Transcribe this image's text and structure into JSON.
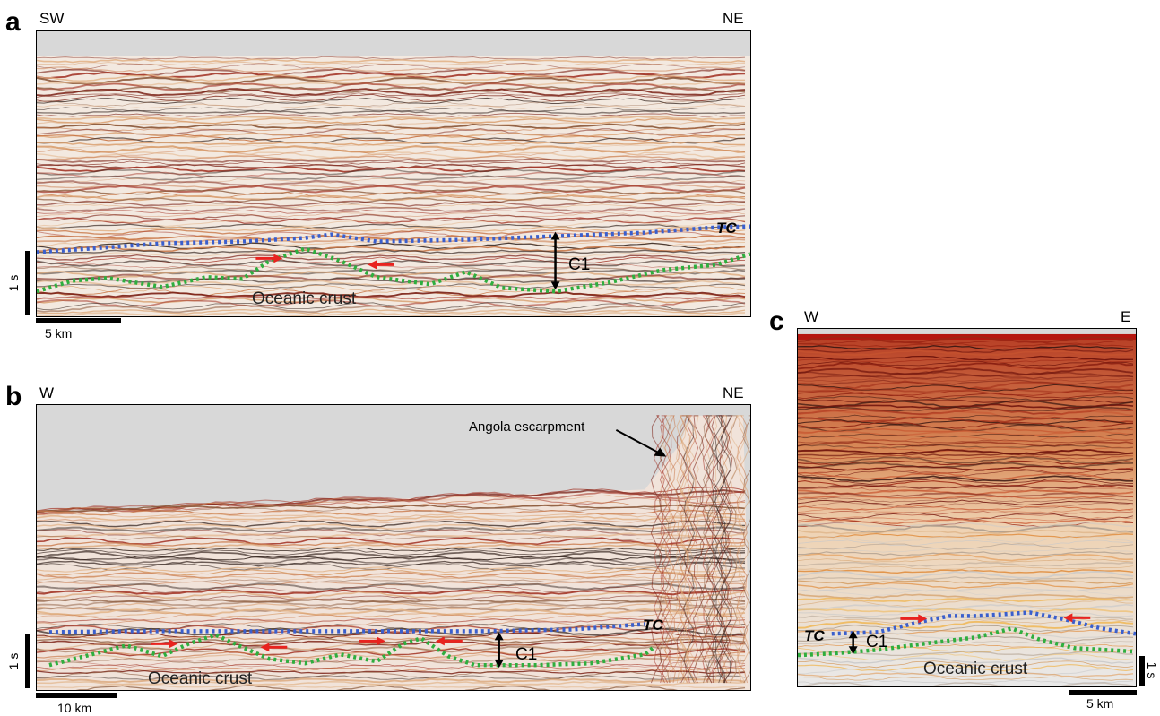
{
  "panels": {
    "a": {
      "letter": "a",
      "left_dir": "SW",
      "right_dir": "NE",
      "tc_label": "TC",
      "c1_label": "C1",
      "crust_label": "Oceanic crust",
      "time_scale": "1 s",
      "dist_scale": "5 km"
    },
    "b": {
      "letter": "b",
      "left_dir": "W",
      "right_dir": "NE",
      "tc_label": "TC",
      "c1_label": "C1",
      "crust_label": "Oceanic crust",
      "escarpment_label": "Angola escarpment",
      "time_scale": "1 s",
      "dist_scale": "10 km"
    },
    "c": {
      "letter": "c",
      "left_dir": "W",
      "right_dir": "E",
      "tc_label": "TC",
      "c1_label": "C1",
      "crust_label": "Oceanic crust",
      "time_scale": "1 s",
      "dist_scale": "5 km"
    }
  },
  "colors": {
    "top_of_crust": "#3a5fcd",
    "base_of_crust": "#2fae3f",
    "shear_arrows": "#e8231f",
    "water_column": "#d8d8d8"
  }
}
